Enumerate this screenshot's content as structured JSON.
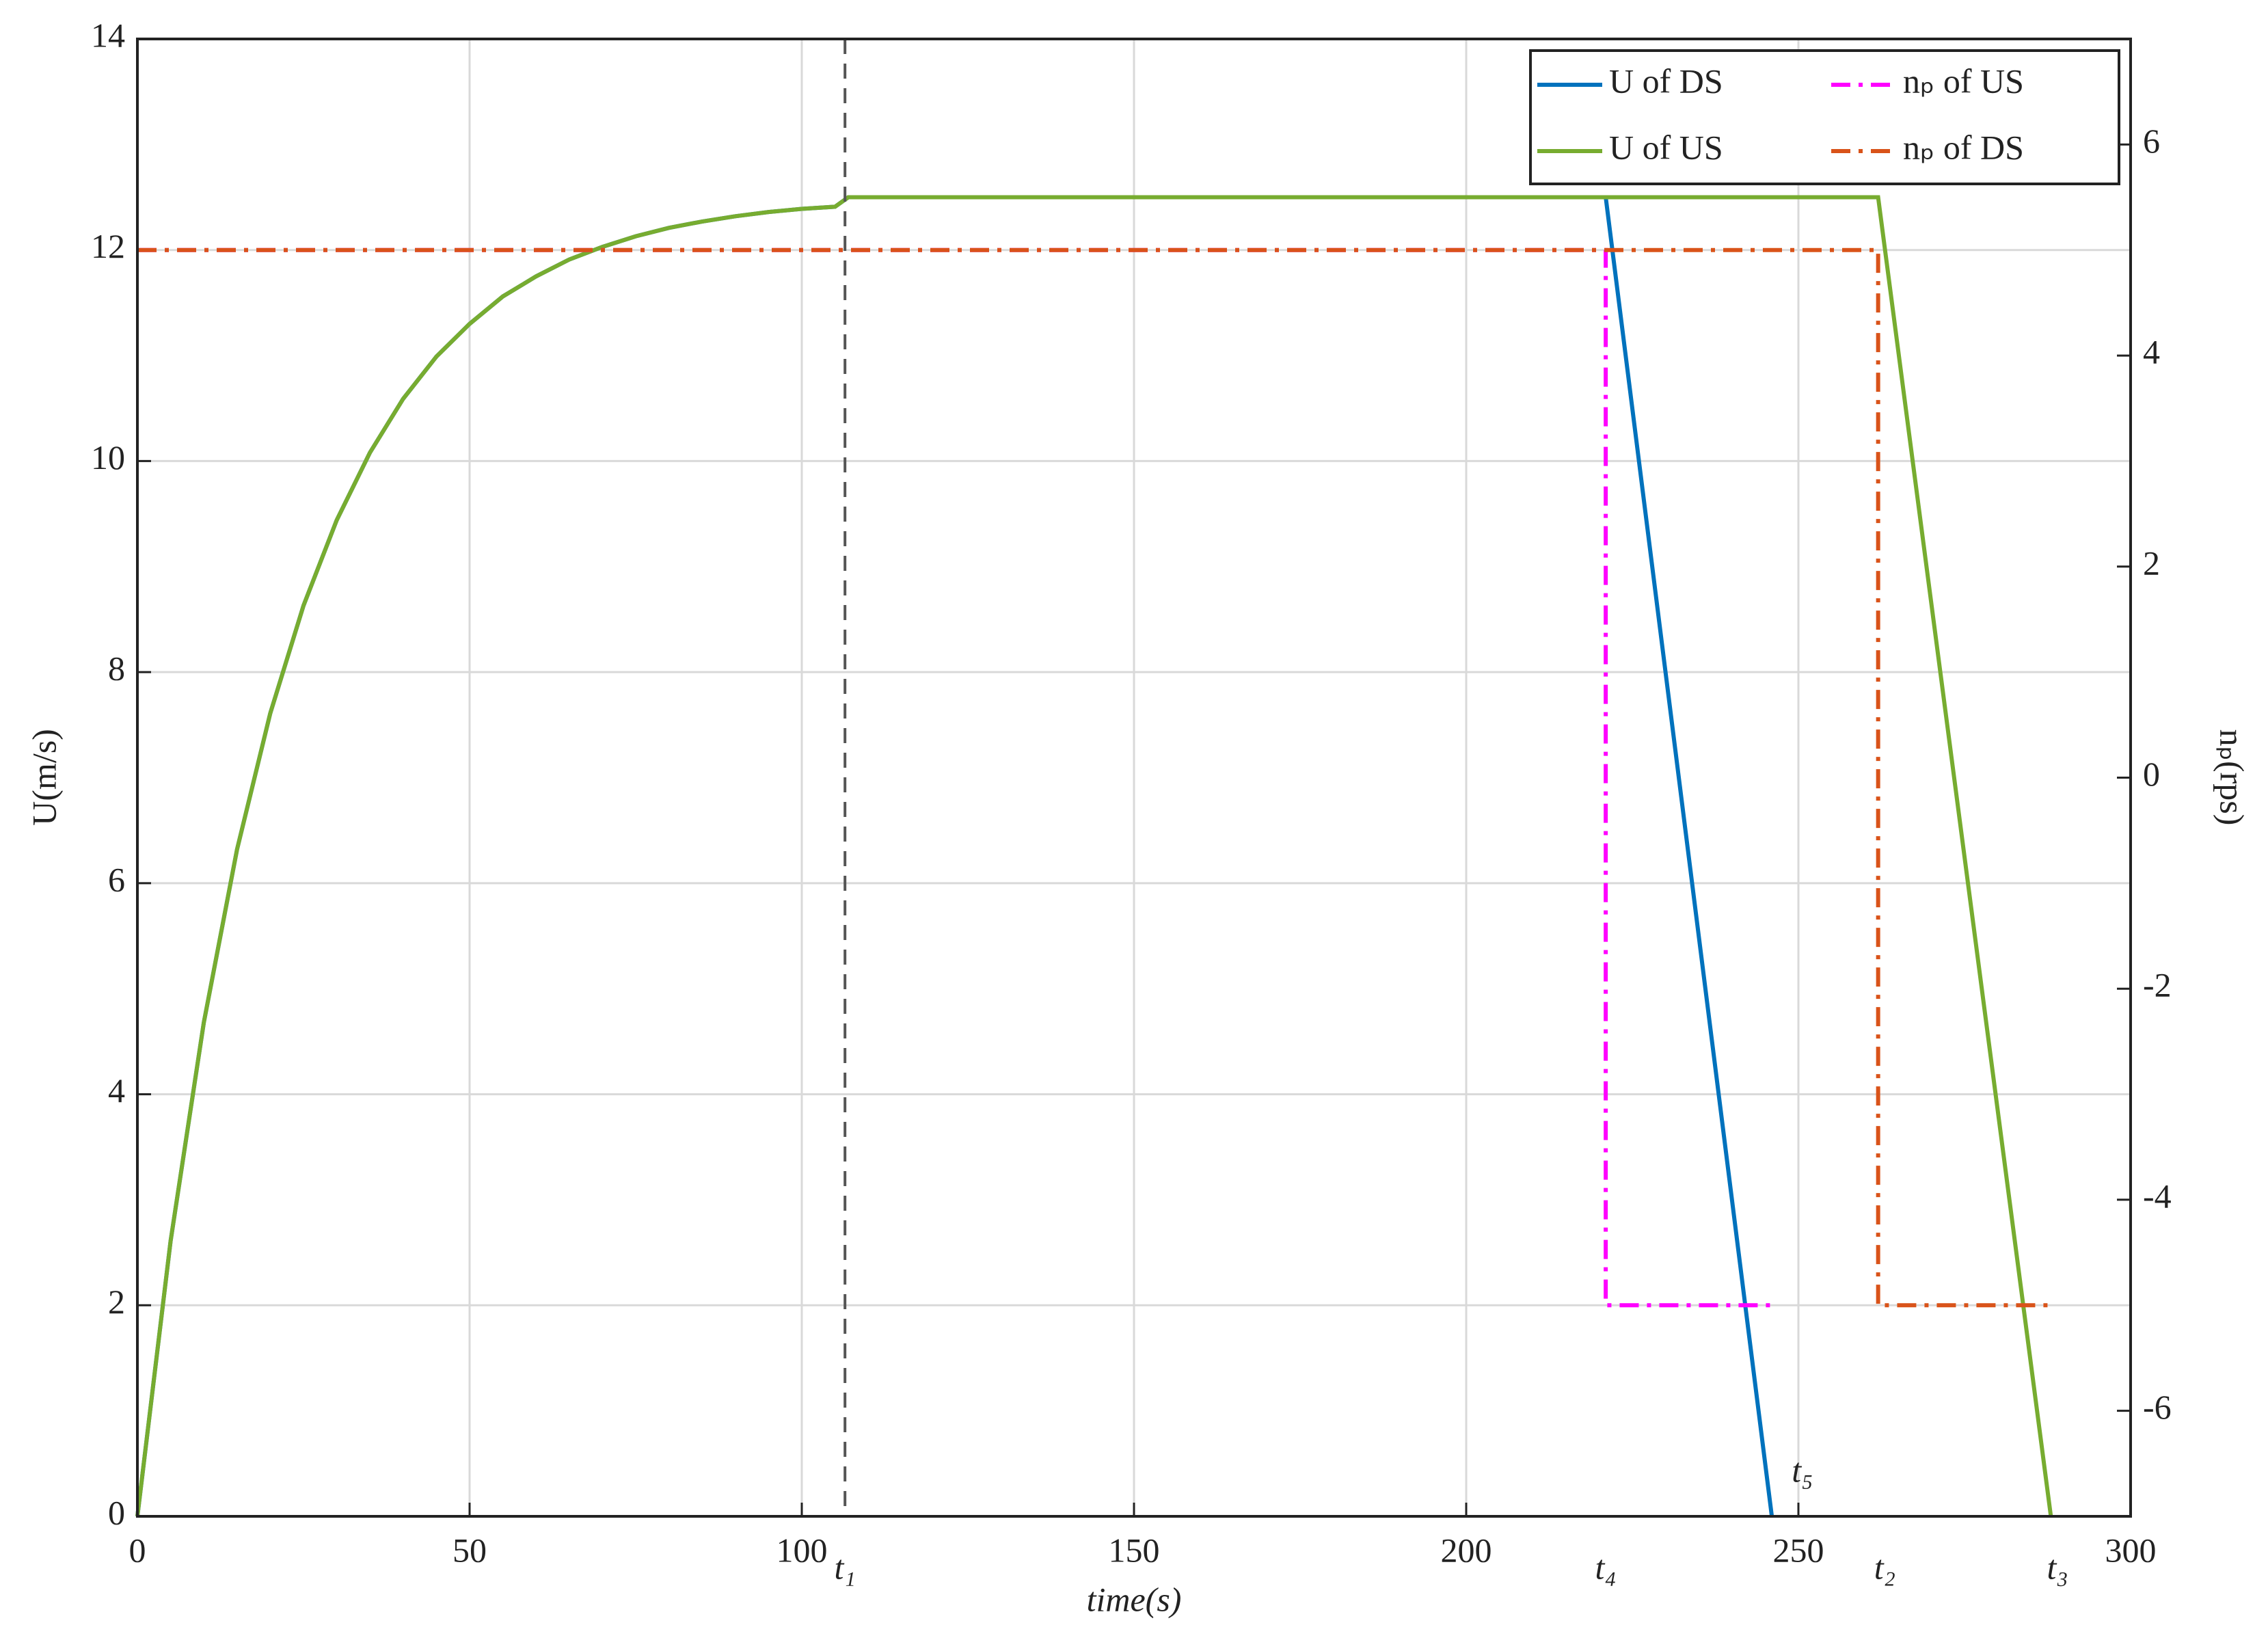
{
  "chart_data": {
    "type": "line",
    "x_label": "time(s)",
    "y_label": "U(m/s)",
    "y2_label": "nₚ(rps)",
    "xlim": [
      0,
      300
    ],
    "xticks": [
      0,
      50,
      100,
      150,
      200,
      250,
      300
    ],
    "ylim": [
      0,
      14
    ],
    "yticks": [
      0,
      2,
      4,
      6,
      8,
      10,
      12,
      14
    ],
    "y2lim": [
      -7,
      7
    ],
    "y2ticks": [
      -6,
      -4,
      -2,
      0,
      2,
      4,
      6
    ],
    "grid": true,
    "legend": "upper right",
    "series": [
      {
        "name": "U of DS",
        "color": "#0072bd",
        "dash": "solid",
        "axis": "y",
        "x": [
          0,
          5,
          10,
          15,
          20,
          25,
          30,
          35,
          40,
          45,
          50,
          55,
          60,
          65,
          70,
          75,
          80,
          85,
          90,
          95,
          100,
          105,
          107,
          221,
          246
        ],
        "values": [
          0,
          2.61,
          4.68,
          6.32,
          7.61,
          8.63,
          9.44,
          10.08,
          10.59,
          10.99,
          11.3,
          11.56,
          11.75,
          11.91,
          12.03,
          12.13,
          12.21,
          12.27,
          12.32,
          12.36,
          12.39,
          12.41,
          12.5,
          12.5,
          0
        ]
      },
      {
        "name": "U of US",
        "color": "#77ac30",
        "dash": "solid",
        "axis": "y",
        "x": [
          0,
          5,
          10,
          15,
          20,
          25,
          30,
          35,
          40,
          45,
          50,
          55,
          60,
          65,
          70,
          75,
          80,
          85,
          90,
          95,
          100,
          105,
          107,
          262,
          288
        ],
        "values": [
          0,
          2.61,
          4.68,
          6.32,
          7.61,
          8.63,
          9.44,
          10.08,
          10.59,
          10.99,
          11.3,
          11.56,
          11.75,
          11.91,
          12.03,
          12.13,
          12.21,
          12.27,
          12.32,
          12.36,
          12.39,
          12.41,
          12.5,
          12.5,
          0
        ]
      },
      {
        "name": "nₚ of US",
        "color": "#ff00ff",
        "dash": "dashdot",
        "axis": "y2",
        "x": [
          0,
          221,
          221,
          246
        ],
        "values": [
          5,
          5,
          -5,
          -5
        ]
      },
      {
        "name": "nₚ of DS",
        "color": "#d95319",
        "dash": "dashdot",
        "axis": "y2",
        "x": [
          0,
          262,
          262,
          288
        ],
        "values": [
          5,
          5,
          -5,
          -5
        ]
      }
    ],
    "annotations": [
      {
        "text": "t₁",
        "x": 106.5,
        "vline": true
      },
      {
        "text": "t₄",
        "x": 221
      },
      {
        "text": "t₅",
        "x": 249,
        "y": 0.4
      },
      {
        "text": "t₂",
        "x": 263
      },
      {
        "text": "t₃",
        "x": 289
      }
    ]
  }
}
